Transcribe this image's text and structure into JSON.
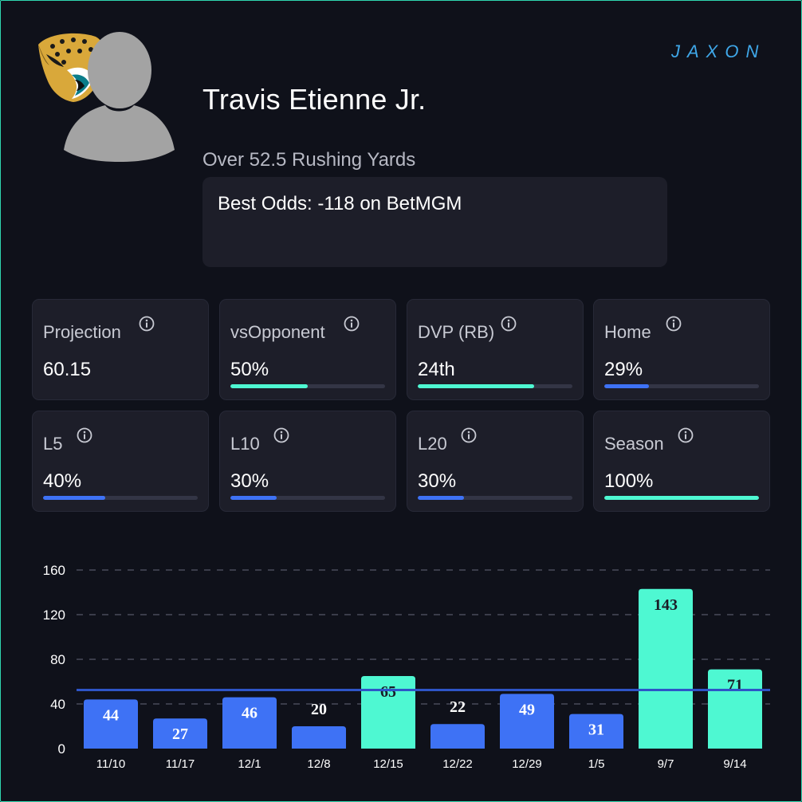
{
  "player": {
    "name": "Travis Etienne Jr.",
    "prop": "Over 52.5 Rushing Yards",
    "odds": "Best Odds: -118 on BetMGM",
    "team_logo": "jaguars-logo",
    "avatar_icon": "player-silhouette-icon"
  },
  "brand": {
    "logo_text": "JAXON",
    "logo_color": "#3fa7e8"
  },
  "colors": {
    "teal": "#4ef8d2",
    "blue": "#3e72f5",
    "line": "#2e55c7"
  },
  "stats": [
    {
      "label": "Projection",
      "value": "60.15",
      "percent": null,
      "color": "none"
    },
    {
      "label": "vsOpponent",
      "value": "50%",
      "percent": 50,
      "color": "teal"
    },
    {
      "label": "DVP (RB)",
      "value": "24th",
      "percent": 75,
      "color": "teal"
    },
    {
      "label": "Home",
      "value": "29%",
      "percent": 29,
      "color": "blue"
    },
    {
      "label": "L5",
      "value": "40%",
      "percent": 40,
      "color": "blue"
    },
    {
      "label": "L10",
      "value": "30%",
      "percent": 30,
      "color": "blue"
    },
    {
      "label": "L20",
      "value": "30%",
      "percent": 30,
      "color": "blue"
    },
    {
      "label": "Season",
      "value": "100%",
      "percent": 100,
      "color": "teal"
    }
  ],
  "chart_data": {
    "type": "bar",
    "title": "",
    "xlabel": "",
    "ylabel": "",
    "categories": [
      "11/10",
      "11/17",
      "12/1",
      "12/8",
      "12/15",
      "12/22",
      "12/29",
      "1/5",
      "9/7",
      "9/14"
    ],
    "values": [
      44,
      27,
      46,
      20,
      65,
      22,
      49,
      31,
      143,
      71
    ],
    "bar_colors": [
      "blue",
      "blue",
      "blue",
      "blue",
      "teal",
      "blue",
      "blue",
      "blue",
      "teal",
      "teal"
    ],
    "ylim": [
      0,
      160
    ],
    "yticks": [
      0,
      40,
      80,
      120,
      160
    ],
    "reference_line": 52.5,
    "grid": true
  }
}
